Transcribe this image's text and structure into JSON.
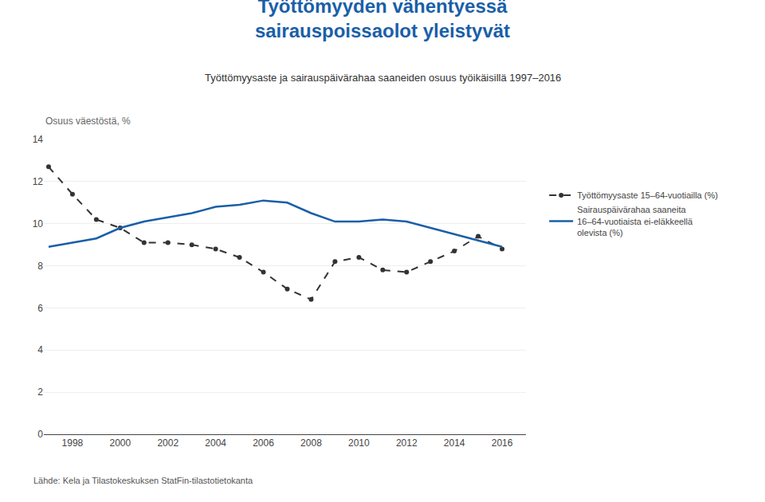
{
  "chart_data": {
    "type": "line",
    "title": "Työttömyyden vähentyessä\nsairauspoissaolot yleistyvät",
    "subtitle": "Työttömyysaste ja sairauspäivärahaa saaneiden osuus työikäisillä 1997–2016",
    "ylabel": "Osuus väestöstä, %",
    "source": "Lähde: Kela ja Tilastokeskuksen StatFin-tilastotietokanta",
    "x": [
      1997,
      1998,
      1999,
      2000,
      2001,
      2002,
      2003,
      2004,
      2005,
      2006,
      2007,
      2008,
      2009,
      2010,
      2011,
      2012,
      2013,
      2014,
      2015,
      2016
    ],
    "series": [
      {
        "name": "Työttömyysaste 15–64-vuotiailla (%)",
        "color": "#333333",
        "line_style": "dashed",
        "marker": "circle",
        "values": [
          12.7,
          11.4,
          10.2,
          9.8,
          9.1,
          9.1,
          9.0,
          8.8,
          8.4,
          7.7,
          6.9,
          6.4,
          8.2,
          8.4,
          7.8,
          7.7,
          8.2,
          8.7,
          9.4,
          8.8
        ]
      },
      {
        "name": "Sairauspäivärahaa saaneita\n16–64-vuotiaista ei-eläkkeellä\nolevista (%)",
        "color": "#1a5fa8",
        "line_style": "solid",
        "values": [
          8.9,
          9.1,
          9.3,
          9.8,
          10.1,
          10.3,
          10.5,
          10.8,
          10.9,
          11.1,
          11.0,
          10.5,
          10.1,
          10.1,
          10.2,
          10.1,
          9.8,
          9.5,
          9.2,
          8.9
        ]
      }
    ],
    "xlim": [
      1996.8,
      2017.0
    ],
    "xticks": [
      1998,
      2000,
      2002,
      2004,
      2006,
      2008,
      2010,
      2012,
      2014,
      2016
    ],
    "ylim": [
      0,
      14
    ],
    "yticks": [
      0,
      2,
      4,
      6,
      8,
      10,
      12,
      14
    ],
    "grid": "y",
    "legend": "right",
    "color": "#1a5fa8"
  }
}
